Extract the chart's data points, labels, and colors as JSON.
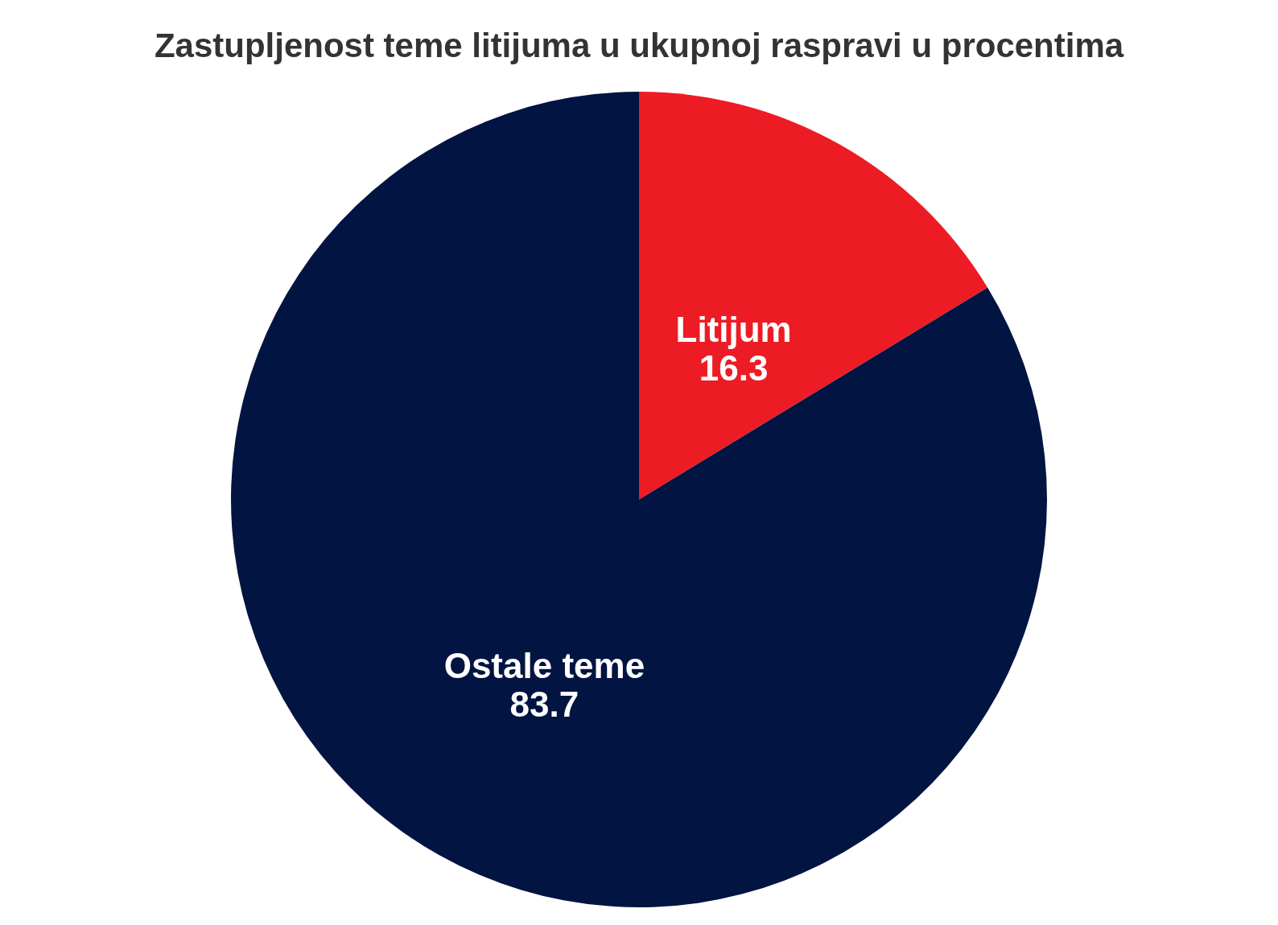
{
  "chart_data": {
    "type": "pie",
    "title": "Zastupljenost teme litijuma u ukupnoj raspravi u procentima",
    "categories": [
      "Litijum",
      "Ostale teme"
    ],
    "values": [
      16.3,
      83.7
    ],
    "colors": [
      "#ed1c24",
      "#021441"
    ],
    "data_labels": true
  }
}
